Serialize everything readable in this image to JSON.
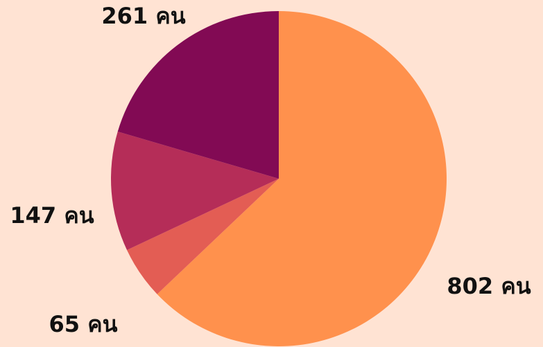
{
  "chart_data": {
    "type": "pie",
    "categories": [
      null,
      null,
      null,
      null
    ],
    "values": [
      802,
      65,
      147,
      261
    ],
    "value_labels": [
      "802 คน",
      "65 คน",
      "147 คน",
      "261 คน"
    ],
    "colors": [
      "#ff914d",
      "#e35d54",
      "#b52d58",
      "#820a54"
    ]
  }
}
